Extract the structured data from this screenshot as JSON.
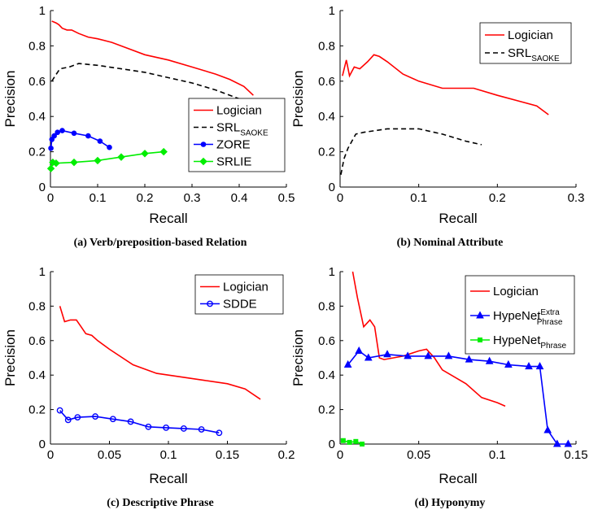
{
  "chart_data": [
    {
      "type": "line",
      "caption": "(a) Verb/preposition-based Relation",
      "xlabel": "Recall",
      "ylabel": "Precision",
      "xlim": [
        0,
        0.5
      ],
      "ylim": [
        0,
        1
      ],
      "xticks": [
        "0",
        "0.1",
        "0.2",
        "0.3",
        "0.4",
        "0.5"
      ],
      "yticks": [
        "0",
        "0.2",
        "0.4",
        "0.6",
        "0.8",
        "1"
      ],
      "legend_position": "bottom-right",
      "series": [
        {
          "name": "Logician",
          "color": "#ff0000",
          "dash": "solid",
          "marker": "none",
          "x": [
            0.003,
            0.012,
            0.018,
            0.025,
            0.035,
            0.045,
            0.06,
            0.08,
            0.1,
            0.13,
            0.16,
            0.2,
            0.25,
            0.3,
            0.35,
            0.38,
            0.41,
            0.43
          ],
          "y": [
            0.94,
            0.93,
            0.92,
            0.9,
            0.89,
            0.89,
            0.87,
            0.85,
            0.84,
            0.82,
            0.79,
            0.75,
            0.72,
            0.68,
            0.64,
            0.61,
            0.57,
            0.52
          ]
        },
        {
          "name": "SRL",
          "name_sub": "SAOKE",
          "color": "#000000",
          "dash": "dashed",
          "marker": "none",
          "x": [
            0.003,
            0.01,
            0.02,
            0.04,
            0.06,
            0.1,
            0.15,
            0.2,
            0.25,
            0.3,
            0.35,
            0.4,
            0.44
          ],
          "y": [
            0.6,
            0.63,
            0.67,
            0.68,
            0.7,
            0.69,
            0.67,
            0.65,
            0.62,
            0.59,
            0.55,
            0.5,
            0.48
          ]
        },
        {
          "name": "ZORE",
          "color": "#0000ff",
          "dash": "solid",
          "marker": "circle",
          "x": [
            0.001,
            0.003,
            0.008,
            0.015,
            0.025,
            0.05,
            0.08,
            0.105,
            0.125
          ],
          "y": [
            0.22,
            0.27,
            0.29,
            0.31,
            0.32,
            0.305,
            0.29,
            0.26,
            0.225
          ]
        },
        {
          "name": "SRLIE",
          "color": "#00ee00",
          "dash": "solid",
          "marker": "diamond",
          "x": [
            0.001,
            0.005,
            0.012,
            0.05,
            0.1,
            0.15,
            0.2,
            0.24
          ],
          "y": [
            0.105,
            0.14,
            0.135,
            0.14,
            0.15,
            0.17,
            0.19,
            0.2
          ]
        }
      ]
    },
    {
      "type": "line",
      "caption": "(b) Nominal Attribute",
      "xlabel": "Recall",
      "ylabel": "Precision",
      "xlim": [
        0,
        0.3
      ],
      "ylim": [
        0,
        1
      ],
      "xticks": [
        "0",
        "0.1",
        "0.2",
        "0.3"
      ],
      "yticks": [
        "0",
        "0.2",
        "0.4",
        "0.6",
        "0.8",
        "1"
      ],
      "legend_position": "top-right",
      "series": [
        {
          "name": "Logician",
          "color": "#ff0000",
          "dash": "solid",
          "marker": "none",
          "x": [
            0.003,
            0.008,
            0.012,
            0.018,
            0.025,
            0.035,
            0.043,
            0.05,
            0.06,
            0.08,
            0.1,
            0.13,
            0.17,
            0.2,
            0.25,
            0.265
          ],
          "y": [
            0.63,
            0.72,
            0.63,
            0.68,
            0.67,
            0.71,
            0.75,
            0.74,
            0.71,
            0.64,
            0.6,
            0.56,
            0.56,
            0.52,
            0.46,
            0.41
          ]
        },
        {
          "name": "SRL",
          "name_sub": "SAOKE",
          "color": "#000000",
          "dash": "dashed",
          "marker": "none",
          "x": [
            0.001,
            0.005,
            0.01,
            0.02,
            0.03,
            0.06,
            0.1,
            0.13,
            0.16,
            0.18
          ],
          "y": [
            0.07,
            0.16,
            0.22,
            0.3,
            0.31,
            0.33,
            0.33,
            0.3,
            0.26,
            0.24
          ]
        }
      ]
    },
    {
      "type": "line",
      "caption": "(c) Descriptive Phrase",
      "xlabel": "Recall",
      "ylabel": "Precision",
      "xlim": [
        0,
        0.2
      ],
      "ylim": [
        0,
        1
      ],
      "xticks": [
        "0",
        "0.05",
        "0.1",
        "0.15",
        "0.2"
      ],
      "yticks": [
        "0",
        "0.2",
        "0.4",
        "0.6",
        "0.8",
        "1"
      ],
      "legend_position": "top-right",
      "series": [
        {
          "name": "Logician",
          "color": "#ff0000",
          "dash": "solid",
          "marker": "none",
          "x": [
            0.008,
            0.012,
            0.017,
            0.022,
            0.026,
            0.03,
            0.035,
            0.04,
            0.05,
            0.07,
            0.09,
            0.11,
            0.13,
            0.15,
            0.165,
            0.178
          ],
          "y": [
            0.8,
            0.71,
            0.72,
            0.72,
            0.68,
            0.64,
            0.63,
            0.6,
            0.55,
            0.46,
            0.41,
            0.39,
            0.37,
            0.35,
            0.32,
            0.26
          ]
        },
        {
          "name": "SDDE",
          "color": "#0000ff",
          "dash": "solid",
          "marker": "circle-open",
          "x": [
            0.008,
            0.015,
            0.023,
            0.038,
            0.053,
            0.068,
            0.083,
            0.098,
            0.113,
            0.128,
            0.143
          ],
          "y": [
            0.195,
            0.14,
            0.155,
            0.16,
            0.145,
            0.13,
            0.1,
            0.095,
            0.09,
            0.085,
            0.065
          ]
        }
      ]
    },
    {
      "type": "line",
      "caption": "(d) Hyponymy",
      "xlabel": "Recall",
      "ylabel": "Precision",
      "xlim": [
        0,
        0.15
      ],
      "ylim": [
        0,
        1
      ],
      "xticks": [
        "0",
        "0.05",
        "0.1",
        "0.15"
      ],
      "yticks": [
        "0",
        "0.2",
        "0.4",
        "0.6",
        "0.8",
        "1"
      ],
      "legend_position": "top-right",
      "series": [
        {
          "name": "Logician",
          "color": "#ff0000",
          "dash": "solid",
          "marker": "none",
          "x": [
            0.008,
            0.011,
            0.015,
            0.019,
            0.022,
            0.025,
            0.028,
            0.04,
            0.05,
            0.055,
            0.06,
            0.065,
            0.08,
            0.09,
            0.1,
            0.105
          ],
          "y": [
            1.0,
            0.85,
            0.68,
            0.72,
            0.68,
            0.5,
            0.49,
            0.51,
            0.54,
            0.55,
            0.5,
            0.43,
            0.35,
            0.27,
            0.24,
            0.22
          ]
        },
        {
          "name": "HypeNet",
          "name_sup": "Extra",
          "name_sub": "Phrase",
          "color": "#0000ff",
          "dash": "solid",
          "marker": "triangle",
          "x": [
            0.005,
            0.012,
            0.018,
            0.03,
            0.043,
            0.056,
            0.069,
            0.082,
            0.095,
            0.107,
            0.12,
            0.127,
            0.132,
            0.138,
            0.145
          ],
          "y": [
            0.46,
            0.54,
            0.5,
            0.52,
            0.51,
            0.51,
            0.51,
            0.49,
            0.48,
            0.46,
            0.45,
            0.45,
            0.08,
            0.0,
            0.0
          ]
        },
        {
          "name": "HypeNet",
          "name_sub": "Phrase",
          "color": "#00ee00",
          "dash": "solid",
          "marker": "square",
          "x": [
            0.002,
            0.006,
            0.01,
            0.014
          ],
          "y": [
            0.02,
            0.01,
            0.015,
            0.0
          ]
        }
      ]
    }
  ]
}
